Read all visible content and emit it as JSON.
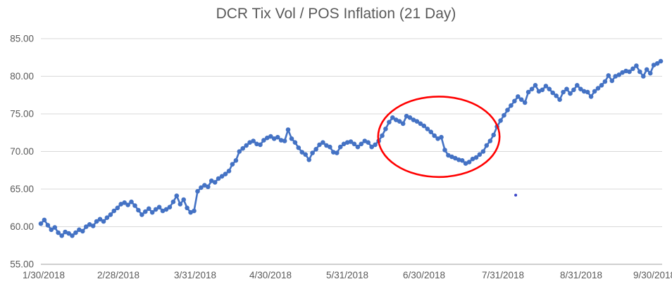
{
  "chart_data": {
    "type": "line",
    "title": "DCR Tix Vol / POS Inflation (21 Day)",
    "xlabel": "",
    "ylabel": "",
    "ylim": [
      55,
      85
    ],
    "grid": true,
    "legend": false,
    "marker_style": "circle",
    "y_ticks": [
      85,
      80,
      75,
      70,
      65,
      60,
      55
    ],
    "y_tick_labels": [
      "85.00",
      "80.00",
      "75.00",
      "70.00",
      "65.00",
      "60.00",
      "55.00"
    ],
    "x_tick_labels": [
      "1/30/2018",
      "2/28/2018",
      "3/31/2018",
      "4/30/2018",
      "5/31/2018",
      "6/30/2018",
      "7/31/2018",
      "8/31/2018",
      "9/30/2018"
    ],
    "series": [
      {
        "name": "DCR Tix Vol / POS Inflation (21 Day)",
        "values": [
          60.4,
          60.9,
          60.2,
          59.6,
          59.9,
          59.2,
          58.8,
          59.3,
          59.1,
          58.8,
          59.2,
          59.6,
          59.4,
          60.0,
          60.3,
          60.1,
          60.7,
          61.0,
          60.7,
          61.2,
          61.6,
          62.1,
          62.5,
          63.0,
          63.2,
          62.9,
          63.3,
          62.8,
          62.2,
          61.6,
          62.0,
          62.4,
          61.9,
          62.3,
          62.6,
          62.1,
          62.3,
          62.6,
          63.3,
          64.1,
          63.0,
          63.6,
          62.5,
          61.9,
          62.1,
          64.7,
          65.2,
          65.5,
          65.3,
          66.1,
          65.9,
          66.4,
          66.7,
          67.0,
          67.4,
          68.3,
          68.8,
          70.0,
          70.4,
          70.8,
          71.2,
          71.4,
          71.0,
          70.9,
          71.5,
          71.8,
          72.0,
          71.7,
          71.9,
          71.5,
          71.4,
          72.9,
          71.7,
          71.2,
          70.5,
          69.9,
          69.6,
          68.9,
          69.8,
          70.3,
          70.9,
          71.2,
          70.8,
          70.6,
          69.9,
          69.8,
          70.6,
          71.0,
          71.2,
          71.3,
          71.0,
          70.6,
          71.0,
          71.4,
          71.2,
          70.6,
          70.9,
          71.4,
          72.1,
          73.0,
          73.9,
          74.5,
          74.2,
          74.0,
          73.7,
          74.7,
          74.5,
          74.2,
          74.0,
          73.7,
          73.4,
          73.0,
          72.6,
          72.1,
          71.7,
          71.9,
          70.2,
          69.5,
          69.3,
          69.1,
          68.9,
          68.8,
          68.4,
          68.6,
          69.0,
          69.2,
          69.6,
          70.0,
          70.8,
          71.4,
          72.2,
          73.3,
          74.1,
          74.8,
          75.5,
          76.1,
          76.7,
          77.3,
          76.9,
          76.5,
          77.9,
          78.3,
          78.8,
          78.0,
          78.2,
          78.7,
          78.3,
          77.8,
          77.4,
          76.9,
          77.9,
          78.3,
          77.7,
          78.2,
          78.8,
          78.3,
          78.0,
          77.9,
          77.3,
          78.0,
          78.4,
          78.8,
          79.3,
          80.1,
          79.4,
          80.0,
          80.2,
          80.5,
          80.7,
          80.6,
          81.0,
          81.4,
          80.6,
          80.0,
          80.9,
          80.4,
          81.5,
          81.7,
          82.0
        ]
      }
    ],
    "annotations": [
      {
        "type": "ellipse",
        "purpose": "hand-drawn highlight of the July dip",
        "x_start_frac": 0.544,
        "x_end_frac": 0.74,
        "value_top": 77.3,
        "value_bottom": 66.6
      },
      {
        "type": "dot",
        "purpose": "stray small data speck",
        "x_frac": 0.766,
        "value": 64.2
      }
    ],
    "colors": {
      "line": "#4472C4",
      "marker": "#4472C4",
      "annotation": "#FF0000",
      "stray_dot": "#3A45C8",
      "grid": "#D9D9D9",
      "axis_line": "#BFBFBF",
      "text": "#595959"
    }
  }
}
